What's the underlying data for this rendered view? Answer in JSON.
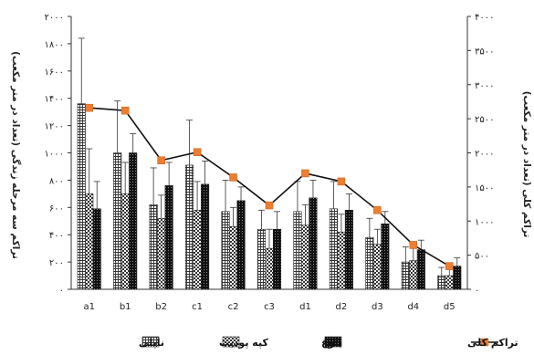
{
  "chart_data": {
    "type": "bar",
    "categories": [
      "a1",
      "b1",
      "b2",
      "c1",
      "c2",
      "c3",
      "d1",
      "d2",
      "d3",
      "d4",
      "d5"
    ],
    "left_axis": {
      "title": "تراکم سه مرحله زندگی (تعداد در متر مکعب)",
      "ylim": [
        0,
        2000
      ],
      "ticks": [
        "۰",
        "۲۰۰",
        "۴۰۰",
        "۶۰۰",
        "۸۰۰",
        "۱۰۰۰",
        "۱۲۰۰",
        "۱۴۰۰",
        "۱۶۰۰",
        "۱۸۰۰",
        "۲۰۰۰"
      ],
      "tick_values": [
        0,
        200,
        400,
        600,
        800,
        1000,
        1200,
        1400,
        1600,
        1800,
        2000
      ]
    },
    "right_axis": {
      "title": "تراکم کلی (تعداد در متر مکعب)",
      "ylim": [
        0,
        4000
      ],
      "ticks": [
        "۰",
        "۵۰۰",
        "۱۰۰۰",
        "۱۵۰۰",
        "۲۰۰۰",
        "۲۵۰۰",
        "۳۰۰۰",
        "۳۵۰۰",
        "۴۰۰۰"
      ],
      "tick_values": [
        0,
        500,
        1000,
        1500,
        2000,
        2500,
        3000,
        3500,
        4000
      ]
    },
    "series": [
      {
        "name": "ناپلی",
        "kind": "bar",
        "axis": "left",
        "pattern": "grid",
        "values": [
          1360,
          1000,
          620,
          910,
          570,
          440,
          570,
          590,
          380,
          200,
          100
        ],
        "errors": [
          480,
          380,
          270,
          330,
          230,
          140,
          220,
          200,
          140,
          110,
          60
        ]
      },
      {
        "name": "کپه پودیت",
        "kind": "bar",
        "axis": "left",
        "pattern": "check",
        "values": [
          700,
          700,
          520,
          580,
          460,
          300,
          470,
          420,
          330,
          210,
          100
        ],
        "errors": [
          330,
          230,
          170,
          210,
          140,
          140,
          150,
          130,
          110,
          90,
          60
        ]
      },
      {
        "name": "بلوغ",
        "kind": "bar",
        "axis": "left",
        "pattern": "dark",
        "values": [
          590,
          1000,
          760,
          770,
          650,
          440,
          670,
          580,
          480,
          290,
          170
        ],
        "errors": [
          200,
          140,
          170,
          170,
          100,
          130,
          130,
          120,
          90,
          70,
          60
        ]
      },
      {
        "name": "تراکم کلی",
        "kind": "line",
        "axis": "right",
        "color": "#ed7d31",
        "values": [
          2660,
          2620,
          1890,
          2010,
          1640,
          1230,
          1700,
          1580,
          1160,
          650,
          340
        ]
      }
    ],
    "legend": {
      "placement": "bottom"
    }
  }
}
